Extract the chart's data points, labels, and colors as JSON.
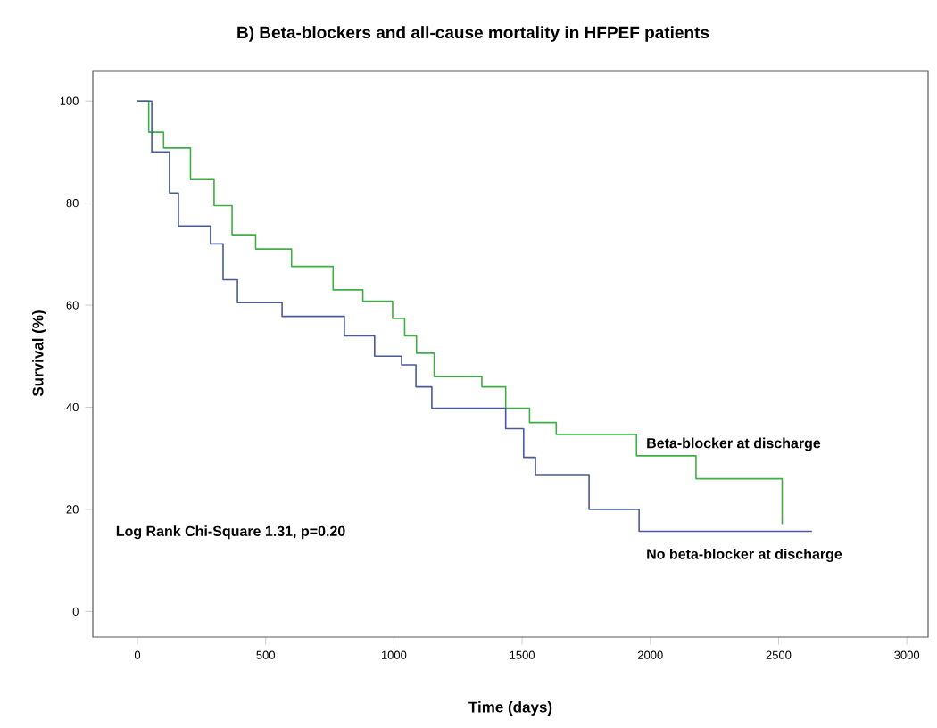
{
  "chart_data": {
    "type": "step",
    "title": "B) Beta-blockers and all-cause mortality in HFPEF patients",
    "xlabel": "Time (days)",
    "ylabel": "Survival (%)",
    "xlim": [
      -174,
      3083
    ],
    "ylim": [
      -5,
      105.8
    ],
    "xticks": [
      0,
      500,
      1000,
      1500,
      2000,
      2500,
      3000
    ],
    "yticks": [
      0,
      20,
      40,
      60,
      80,
      100
    ],
    "grid": false,
    "legend": false,
    "line_style": "solid",
    "annotations": [
      "Log Rank Chi-Square 1.31, p=0.20"
    ],
    "series": [
      {
        "name": "Beta-blocker at discharge",
        "color": "#3fae45",
        "x": [
          0,
          44,
          102,
          207,
          299,
          369,
          461,
          601,
          763,
          879,
          995,
          1042,
          1088,
          1157,
          1343,
          1436,
          1529,
          1633,
          1946,
          2178,
          2514
        ],
        "values": [
          100,
          93.9,
          90.8,
          84.6,
          79.5,
          73.8,
          71,
          67.6,
          63,
          60.8,
          57.4,
          54,
          50.6,
          46,
          44,
          39.8,
          37,
          34.7,
          30.5,
          26,
          17.1
        ]
      },
      {
        "name": "No beta-blocker at discharge",
        "color": "#4a5a9a",
        "x": [
          0,
          56,
          125,
          160,
          285,
          334,
          390,
          564,
          807,
          925,
          1030,
          1086,
          1148,
          1436,
          1506,
          1552,
          1761,
          1956,
          2630
        ],
        "values": [
          100,
          90,
          82,
          75.5,
          72,
          65,
          60.5,
          57.8,
          54,
          50,
          48.3,
          44,
          39.8,
          35.8,
          30.2,
          26.8,
          20,
          15.7,
          15.7
        ]
      }
    ]
  }
}
